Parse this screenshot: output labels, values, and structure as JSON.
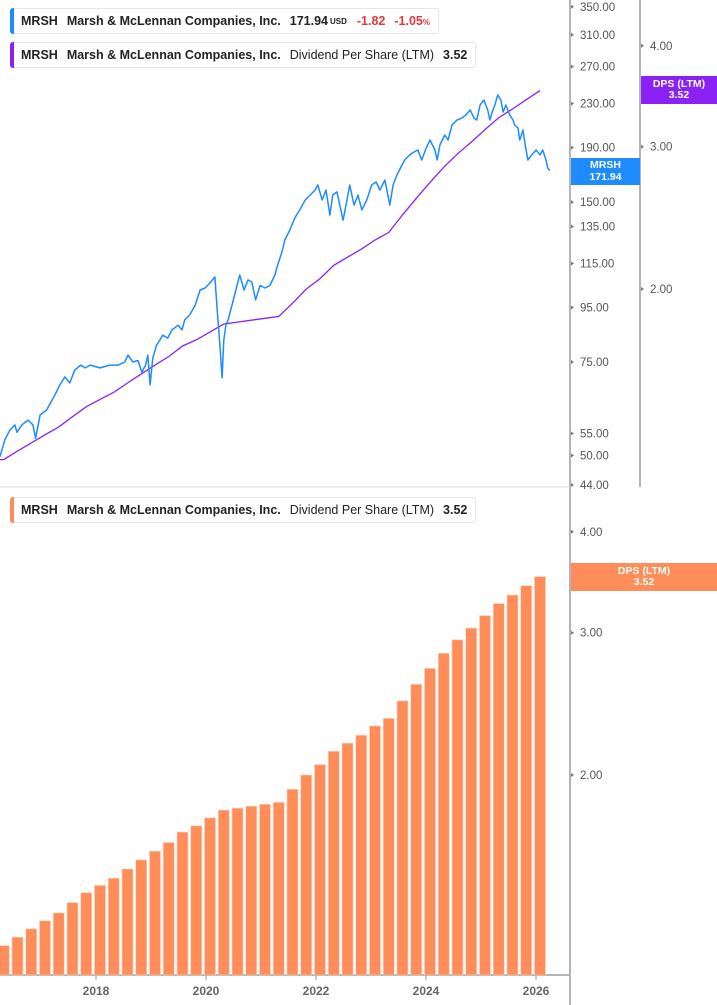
{
  "legends": {
    "price": {
      "ticker": "MRSH",
      "company": "Marsh & McLennan Companies, Inc.",
      "value": "171.94",
      "currency": "USD",
      "change": "-1.82",
      "change_pct": "-1.05",
      "pct_sign": "%"
    },
    "dps_top": {
      "ticker": "MRSH",
      "company": "Marsh & McLennan Companies, Inc.",
      "metric": "Dividend Per Share (LTM)",
      "value": "3.52"
    },
    "dps_bottom": {
      "ticker": "MRSH",
      "company": "Marsh & McLennan Companies, Inc.",
      "metric": "Dividend Per Share (LTM)",
      "value": "3.52"
    }
  },
  "tags": {
    "price": {
      "label": "MRSH",
      "value": "171.94"
    },
    "dps_top": {
      "label": "DPS (LTM)",
      "value": "3.52"
    },
    "dps_bottom": {
      "label": "DPS (LTM)",
      "value": "3.52"
    }
  },
  "colors": {
    "price": "#1e8bff",
    "dps_line": "#8a22f5",
    "dps_bars": "#ff8d5a",
    "negative": "#e0393e"
  },
  "chart_data": [
    {
      "type": "line",
      "yscale": "log",
      "price_axis": {
        "ticks": [
          "350.00",
          "310.00",
          "270.00",
          "230.00",
          "190.00",
          "150.00",
          "135.00",
          "115.00",
          "95.00",
          "75.00",
          "55.00",
          "50.00",
          "44.00"
        ],
        "range": [
          44,
          350
        ]
      },
      "dps_axis": {
        "ticks": [
          "4.00",
          "3.00",
          "2.00"
        ]
      },
      "series": [
        {
          "name": "MRSH",
          "x": [
            2016.18,
            2016.27,
            2016.36,
            2016.45,
            2016.49,
            2016.58,
            2016.69,
            2016.78,
            2016.83,
            2016.91,
            2017.03,
            2017.18,
            2017.27,
            2017.36,
            2017.45,
            2017.54,
            2017.65,
            2017.73,
            2017.82,
            2018.0,
            2018.18,
            2018.33,
            2018.45,
            2018.51,
            2018.6,
            2018.69,
            2018.76,
            2018.83,
            2018.87,
            2018.91,
            2018.96,
            2019.03,
            2019.09,
            2019.14,
            2019.23,
            2019.31,
            2019.42,
            2019.49,
            2019.54,
            2019.63,
            2019.73,
            2019.82,
            2019.91,
            2020.0,
            2020.09,
            2020.13,
            2020.18,
            2020.22,
            2020.25,
            2020.29,
            2020.33,
            2020.4,
            2020.47,
            2020.54,
            2020.62,
            2020.69,
            2020.76,
            2020.83,
            2020.91,
            2021.0,
            2021.09,
            2021.18,
            2021.23,
            2021.31,
            2021.36,
            2021.45,
            2021.54,
            2021.63,
            2021.73,
            2021.82,
            2021.91,
            2021.96,
            2022.04,
            2022.11,
            2022.18,
            2022.23,
            2022.31,
            2022.36,
            2022.42,
            2022.49,
            2022.54,
            2022.62,
            2022.69,
            2022.76,
            2022.85,
            2022.94,
            2023.02,
            2023.09,
            2023.18,
            2023.27,
            2023.33,
            2023.4,
            2023.49,
            2023.54,
            2023.63,
            2023.71,
            2023.78,
            2023.85,
            2023.93,
            2024.0,
            2024.09,
            2024.13,
            2024.18,
            2024.27,
            2024.33,
            2024.4,
            2024.49,
            2024.58,
            2024.65,
            2024.73,
            2024.8,
            2024.85,
            2024.91,
            2024.98,
            2025.05,
            2025.09,
            2025.13,
            2025.18,
            2025.23,
            2025.29,
            2025.33,
            2025.38,
            2025.45,
            2025.51,
            2025.54,
            2025.6,
            2025.63,
            2025.69,
            2025.73,
            2025.78,
            2025.85,
            2025.93,
            2026.0,
            2026.05,
            2026.11,
            2026.14,
            2026.18
          ],
          "y": [
            49.7,
            53.5,
            55.8,
            57.1,
            55.3,
            57.1,
            58.3,
            57.1,
            53.9,
            59.6,
            60.9,
            65.0,
            67.9,
            70.3,
            68.5,
            72.4,
            74.0,
            73.1,
            74.0,
            73.1,
            74.0,
            74.0,
            75.0,
            77.3,
            75.0,
            75.5,
            71.8,
            74.0,
            77.3,
            67.9,
            76.4,
            80.7,
            82.5,
            84.3,
            83.2,
            86.2,
            88.0,
            86.2,
            90.0,
            92.0,
            96.0,
            102.5,
            103.4,
            105.7,
            108.5,
            94.0,
            80.7,
            70.0,
            82.5,
            88.0,
            90.0,
            96.0,
            102.5,
            109.4,
            102.5,
            107.1,
            106.1,
            98.2,
            104.5,
            103.4,
            104.5,
            109.4,
            114.3,
            120.9,
            127.3,
            132.9,
            140.0,
            145.0,
            151.4,
            154.7,
            158.1,
            161.6,
            151.4,
            158.1,
            141.9,
            154.7,
            156.8,
            148.1,
            138.8,
            151.4,
            161.6,
            148.1,
            154.7,
            145.0,
            151.4,
            161.6,
            163.7,
            158.1,
            165.1,
            148.1,
            161.6,
            168.8,
            176.2,
            180.1,
            184.1,
            186.5,
            188.1,
            180.1,
            189.7,
            196.4,
            188.1,
            180.1,
            192.2,
            200.7,
            196.4,
            209.6,
            214.2,
            216.0,
            218.9,
            223.7,
            216.0,
            214.2,
            228.6,
            233.6,
            223.7,
            214.2,
            221.8,
            228.6,
            238.8,
            233.6,
            221.8,
            228.6,
            218.9,
            214.2,
            209.6,
            206.9,
            196.4,
            205.1,
            192.2,
            180.1,
            184.1,
            188.1,
            184.1,
            188.1,
            180.1,
            174.0,
            171.94
          ]
        },
        {
          "name": "Dividend Per Share (LTM)",
          "axis": "dps"
        }
      ]
    },
    {
      "type": "bar",
      "yscale": "log",
      "yticks": [
        "4.00",
        "3.00",
        "2.00"
      ],
      "xticks": [
        "2018",
        "2020",
        "2022",
        "2024",
        "2026"
      ],
      "series": [
        {
          "name": "Dividend Per Share (LTM)",
          "x": [
            2016.25,
            2016.5,
            2016.75,
            2017.0,
            2017.25,
            2017.5,
            2017.75,
            2018.0,
            2018.25,
            2018.5,
            2018.75,
            2019.0,
            2019.25,
            2019.5,
            2019.75,
            2020.0,
            2020.25,
            2020.5,
            2020.75,
            2021.0,
            2021.25,
            2021.5,
            2021.75,
            2022.0,
            2022.25,
            2022.5,
            2022.75,
            2023.0,
            2023.25,
            2023.5,
            2023.75,
            2024.0,
            2024.25,
            2024.5,
            2024.75,
            2025.0,
            2025.25,
            2025.5,
            2025.75,
            2026.0
          ],
          "values": [
            1.23,
            1.26,
            1.29,
            1.32,
            1.35,
            1.39,
            1.43,
            1.46,
            1.49,
            1.53,
            1.57,
            1.61,
            1.65,
            1.7,
            1.73,
            1.77,
            1.81,
            1.82,
            1.83,
            1.84,
            1.85,
            1.92,
            2.0,
            2.06,
            2.14,
            2.19,
            2.24,
            2.3,
            2.35,
            2.47,
            2.59,
            2.71,
            2.83,
            2.94,
            3.04,
            3.15,
            3.26,
            3.34,
            3.43,
            3.52
          ]
        }
      ]
    }
  ]
}
